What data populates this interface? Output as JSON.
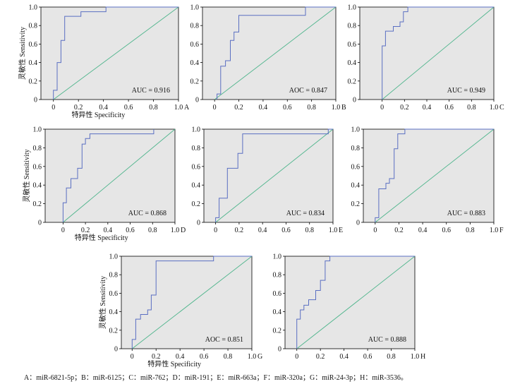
{
  "caption": "A：miR-6821-5p；B：miR-6125；C：miR-762；D：miR-191；E：miR-663a；F：miR-320a；G：miR-24-3p；H：miR-3536。",
  "colors": {
    "plot_bg": "#e6e6e6",
    "roc_line": "#5a6fc2",
    "reference_line": "#4fb58c",
    "axis": "#000000"
  },
  "chart_data": [
    {
      "type": "line",
      "panel_label": "A",
      "annotation": "AUC = 0.916",
      "xlabel": "特异性 Specificity",
      "ylabel": "灵敏性 Sensitivity",
      "xticks": [
        "0",
        "0.2",
        "0.4",
        "0.6",
        "0.8",
        "1.0"
      ],
      "yticks": [
        "0",
        "0.2",
        "0.4",
        "0.6",
        "0.8",
        "1.0"
      ],
      "xlim": [
        -0.1,
        1.0
      ],
      "ylim": [
        0,
        1.0
      ],
      "series": [
        {
          "x": [
            0.0,
            0.0,
            0.03,
            0.03,
            0.06,
            0.06,
            0.09,
            0.09,
            0.22,
            0.22,
            0.42,
            0.42,
            1.0
          ],
          "y": [
            0.0,
            0.1,
            0.1,
            0.4,
            0.4,
            0.64,
            0.64,
            0.9,
            0.9,
            0.95,
            0.95,
            1.0,
            1.0
          ]
        }
      ],
      "reference": {
        "x": [
          0,
          1
        ],
        "y": [
          0,
          1
        ]
      }
    },
    {
      "type": "line",
      "panel_label": "B",
      "annotation": "AOC = 0.847",
      "xlabel": "",
      "ylabel": "",
      "xticks": [
        "0",
        "0.2",
        "0.4",
        "0.6",
        "0.8",
        "1.0"
      ],
      "yticks": [
        "0",
        "0.2",
        "0.4",
        "0.6",
        "0.8",
        "1.0"
      ],
      "xlim": [
        -0.1,
        1.0
      ],
      "ylim": [
        0,
        1.0
      ],
      "series": [
        {
          "x": [
            0.02,
            0.02,
            0.05,
            0.05,
            0.09,
            0.09,
            0.13,
            0.13,
            0.16,
            0.16,
            0.2,
            0.2,
            0.75,
            0.75,
            1.0
          ],
          "y": [
            0.0,
            0.06,
            0.06,
            0.36,
            0.36,
            0.42,
            0.42,
            0.64,
            0.64,
            0.73,
            0.73,
            0.91,
            0.91,
            1.0,
            1.0
          ]
        }
      ],
      "reference": {
        "x": [
          0,
          1
        ],
        "y": [
          0,
          1
        ]
      }
    },
    {
      "type": "line",
      "panel_label": "C",
      "annotation": "AUC = 0.949",
      "xlabel": "",
      "ylabel": "",
      "xticks": [
        "0",
        "0.2",
        "0.4",
        "0.6",
        "0.8",
        "1.0"
      ],
      "yticks": [
        "0",
        "0.2",
        "0.4",
        "0.6",
        "0.8",
        "1.0"
      ],
      "xlim": [
        -0.2,
        1.0
      ],
      "ylim": [
        0,
        1.0
      ],
      "series": [
        {
          "x": [
            0.0,
            0.0,
            0.03,
            0.03,
            0.1,
            0.1,
            0.16,
            0.16,
            0.19,
            0.19,
            0.23,
            0.23,
            1.0
          ],
          "y": [
            0.0,
            0.58,
            0.58,
            0.74,
            0.74,
            0.79,
            0.79,
            0.84,
            0.84,
            0.95,
            0.95,
            1.0,
            1.0
          ]
        }
      ],
      "reference": {
        "x": [
          0,
          1
        ],
        "y": [
          0,
          1
        ]
      }
    },
    {
      "type": "line",
      "panel_label": "D",
      "annotation": "AUC = 0.868",
      "xlabel": "特异性 Specificity",
      "ylabel": "灵敏性 Sensitivity",
      "xticks": [
        "0",
        "0.2",
        "0.4",
        "0.6",
        "0.8",
        "1.0"
      ],
      "yticks": [
        "0",
        "0.2",
        "0.4",
        "0.6",
        "0.8",
        "1.0"
      ],
      "xlim": [
        -0.16,
        1.0
      ],
      "ylim": [
        0,
        1.0
      ],
      "series": [
        {
          "x": [
            0.0,
            0.0,
            0.03,
            0.03,
            0.07,
            0.07,
            0.13,
            0.13,
            0.17,
            0.17,
            0.2,
            0.2,
            0.24,
            0.24,
            0.81,
            0.81
          ],
          "y": [
            0.0,
            0.21,
            0.21,
            0.37,
            0.37,
            0.47,
            0.47,
            0.58,
            0.58,
            0.84,
            0.84,
            0.9,
            0.9,
            0.95,
            0.95,
            1.0
          ]
        }
      ],
      "reference": {
        "x": [
          0,
          1
        ],
        "y": [
          0,
          1
        ]
      }
    },
    {
      "type": "line",
      "panel_label": "E",
      "annotation": "AUC = 0.834",
      "xlabel": "",
      "ylabel": "",
      "xticks": [
        "0",
        "0.2",
        "0.4",
        "0.6",
        "0.8",
        "1.0"
      ],
      "yticks": [
        "0",
        "0.2",
        "0.4",
        "0.6",
        "0.8",
        "1.0"
      ],
      "xlim": [
        -0.1,
        1.0
      ],
      "ylim": [
        0,
        1.0
      ],
      "series": [
        {
          "x": [
            0.0,
            0.0,
            0.03,
            0.03,
            0.1,
            0.1,
            0.19,
            0.19,
            0.23,
            0.23,
            0.96,
            0.96,
            1.0
          ],
          "y": [
            0.0,
            0.05,
            0.05,
            0.26,
            0.26,
            0.58,
            0.58,
            0.74,
            0.74,
            0.95,
            0.95,
            1.0,
            1.0
          ]
        }
      ],
      "reference": {
        "x": [
          0,
          1
        ],
        "y": [
          0,
          1
        ]
      }
    },
    {
      "type": "line",
      "panel_label": "F",
      "annotation": "AUC = 0.883",
      "xlabel": "",
      "ylabel": "",
      "xticks": [
        "0",
        "0.2",
        "0.4",
        "0.6",
        "0.8",
        "1.0"
      ],
      "yticks": [
        "0",
        "0.2",
        "0.4",
        "0.6",
        "0.8",
        "1.0"
      ],
      "xlim": [
        -0.1,
        1.0
      ],
      "ylim": [
        0,
        1.0
      ],
      "series": [
        {
          "x": [
            0.0,
            0.0,
            0.03,
            0.03,
            0.09,
            0.09,
            0.12,
            0.12,
            0.16,
            0.16,
            0.19,
            0.19,
            0.25,
            0.25,
            1.0
          ],
          "y": [
            0.0,
            0.05,
            0.05,
            0.36,
            0.36,
            0.42,
            0.42,
            0.47,
            0.47,
            0.79,
            0.79,
            0.95,
            0.95,
            1.0,
            1.0
          ]
        }
      ],
      "reference": {
        "x": [
          0,
          1
        ],
        "y": [
          0,
          1
        ]
      }
    },
    {
      "type": "line",
      "panel_label": "G",
      "annotation": "AOC = 0.851",
      "xlabel": "特异性 Specificity",
      "ylabel": "灵敏性 Sensitivity",
      "xticks": [
        "0",
        "0.2",
        "0.4",
        "0.6",
        "0.8",
        "1.0"
      ],
      "yticks": [
        "0",
        "0.2",
        "0.4",
        "0.6",
        "0.8",
        "1.0"
      ],
      "xlim": [
        -0.09,
        1.0
      ],
      "ylim": [
        0,
        1.0
      ],
      "series": [
        {
          "x": [
            0.0,
            0.0,
            0.03,
            0.03,
            0.07,
            0.07,
            0.13,
            0.13,
            0.16,
            0.16,
            0.2,
            0.2,
            0.68,
            0.68,
            1.0
          ],
          "y": [
            0.0,
            0.1,
            0.1,
            0.32,
            0.32,
            0.37,
            0.37,
            0.42,
            0.42,
            0.58,
            0.58,
            0.95,
            0.95,
            1.0,
            1.0
          ]
        }
      ],
      "reference": {
        "x": [
          0,
          1
        ],
        "y": [
          0,
          1
        ]
      }
    },
    {
      "type": "line",
      "panel_label": "H",
      "annotation": "AUC = 0.888",
      "xlabel": "",
      "ylabel": "",
      "xticks": [
        "0",
        "0.2",
        "0.4",
        "0.6",
        "0.8",
        "1.0"
      ],
      "yticks": [
        "0",
        "0.2",
        "0.4",
        "0.6",
        "0.8",
        "1.0"
      ],
      "xlim": [
        -0.1,
        1.0
      ],
      "ylim": [
        0,
        1.0
      ],
      "series": [
        {
          "x": [
            0.0,
            0.0,
            0.03,
            0.03,
            0.06,
            0.06,
            0.1,
            0.1,
            0.16,
            0.16,
            0.2,
            0.2,
            0.24,
            0.24,
            0.28,
            0.28,
            1.0
          ],
          "y": [
            0.0,
            0.32,
            0.32,
            0.42,
            0.42,
            0.47,
            0.47,
            0.53,
            0.53,
            0.63,
            0.63,
            0.74,
            0.74,
            0.95,
            0.95,
            1.0,
            1.0
          ]
        }
      ],
      "reference": {
        "x": [
          0,
          1
        ],
        "y": [
          0,
          1
        ]
      }
    }
  ]
}
